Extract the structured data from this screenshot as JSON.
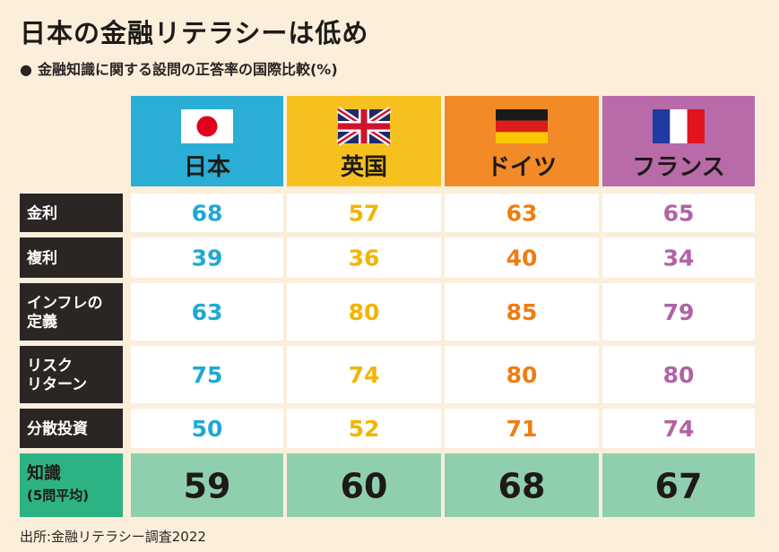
{
  "title": "日本の金融リテラシーは低め",
  "subtitle": "金融知識に関する設問の正答率の国際比較(%)",
  "subtitle_bullet": "●",
  "source": "出所:金融リテラシー調査2022",
  "chart_data": {
    "type": "table",
    "title": "日本の金融リテラシーは低め",
    "subtitle": "金融知識に関する設問の正答率の国際比較(%)",
    "unit": "%",
    "columns": [
      {
        "name": "日本",
        "flag": "japan-flag",
        "color": "#2aaed6",
        "text_color": "#1fa9d6"
      },
      {
        "name": "英国",
        "flag": "uk-flag",
        "color": "#f6c11e",
        "text_color": "#f2b500"
      },
      {
        "name": "ドイツ",
        "flag": "germany-flag",
        "color": "#f28a28",
        "text_color": "#ef7d12"
      },
      {
        "name": "フランス",
        "flag": "france-flag",
        "color": "#b96aa8",
        "text_color": "#b163a5"
      }
    ],
    "rows": [
      {
        "label": [
          "金利"
        ],
        "values": [
          68,
          57,
          63,
          65
        ]
      },
      {
        "label": [
          "複利"
        ],
        "values": [
          39,
          36,
          40,
          34
        ]
      },
      {
        "label": [
          "インフレの",
          "定義"
        ],
        "values": [
          63,
          80,
          85,
          79
        ]
      },
      {
        "label": [
          "リスク",
          "リターン"
        ],
        "values": [
          75,
          74,
          80,
          80
        ]
      },
      {
        "label": [
          "分散投資"
        ],
        "values": [
          50,
          52,
          71,
          74
        ]
      }
    ],
    "summary_row": {
      "label": [
        "知識",
        "(5問平均)"
      ],
      "values": [
        59,
        60,
        68,
        67
      ],
      "color": "#8fcfae",
      "label_color": "#2db383"
    },
    "row_label_bg": "#2b2624",
    "cell_bg": "#ffffff"
  }
}
